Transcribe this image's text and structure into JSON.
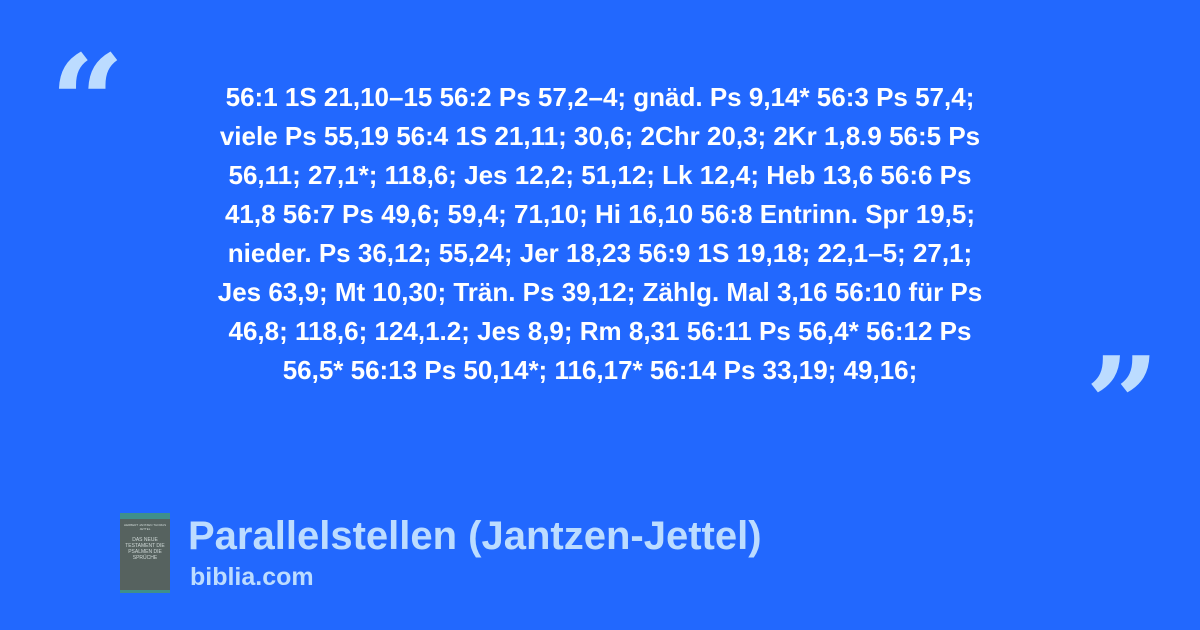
{
  "quote": {
    "lines": [
      "56:1 1S 21,10–15 56:2 Ps 57,2–4; gnäd. Ps 9,14* 56:3 Ps 57,4;",
      "viele Ps 55,19 56:4 1S 21,11; 30,6; 2Chr 20,3; 2Kr 1,8.9 56:5 Ps",
      "56,11; 27,1*; 118,6; Jes 12,2; 51,12; Lk 12,4; Heb 13,6 56:6 Ps",
      "41,8 56:7 Ps 49,6; 59,4; 71,10; Hi 16,10 56:8 Entrinn. Spr 19,5;",
      "nieder. Ps 36,12; 55,24; Jer 18,23 56:9 1S 19,18; 22,1–5; 27,1;",
      "Jes 63,9; Mt 10,30; Trän. Ps 39,12; Zählg. Mal 3,16 56:10 für Ps",
      "46,8; 118,6; 124,1.2; Jes 8,9; Rm 8,31 56:11 Ps 56,4* 56:12 Ps",
      "56,5* 56:13 Ps 50,14*; 116,17* 56:14 Ps 33,19; 49,16;"
    ],
    "open_mark": "“",
    "close_mark": "”"
  },
  "book": {
    "title": "Parallelstellen (Jantzen-Jettel)",
    "site": "biblia.com",
    "cover_authors": "HERBERT JANTZEN THOMAS JETTEL",
    "cover_text": "DAS NEUE TESTAMENT DIE PSALMEN DIE SPRÜCHE"
  },
  "colors": {
    "background": "#2268fe",
    "accent": "#bcdcff",
    "text": "#ffffff"
  }
}
